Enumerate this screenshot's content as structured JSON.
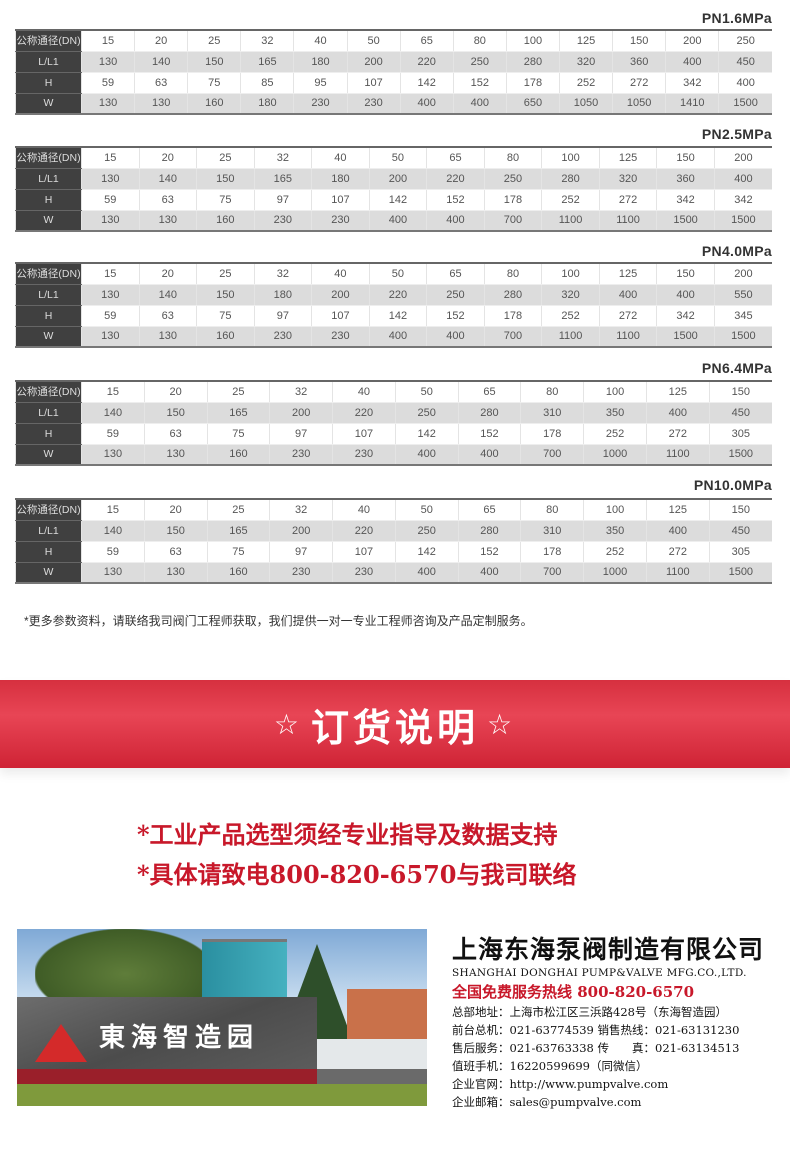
{
  "tables": [
    {
      "pressure": "PN1.6MPa",
      "rows": [
        {
          "label": "公称通径(DN)",
          "values": [
            "15",
            "20",
            "25",
            "32",
            "40",
            "50",
            "65",
            "80",
            "100",
            "125",
            "150",
            "200",
            "250"
          ]
        },
        {
          "label": "L/L1",
          "values": [
            "130",
            "140",
            "150",
            "165",
            "180",
            "200",
            "220",
            "250",
            "280",
            "320",
            "360",
            "400",
            "450"
          ]
        },
        {
          "label": "H",
          "values": [
            "59",
            "63",
            "75",
            "85",
            "95",
            "107",
            "142",
            "152",
            "178",
            "252",
            "272",
            "342",
            "400"
          ]
        },
        {
          "label": "W",
          "values": [
            "130",
            "130",
            "160",
            "180",
            "230",
            "230",
            "400",
            "400",
            "650",
            "1050",
            "1050",
            "1410",
            "1500"
          ]
        }
      ]
    },
    {
      "pressure": "PN2.5MPa",
      "rows": [
        {
          "label": "公称通径(DN)",
          "values": [
            "15",
            "20",
            "25",
            "32",
            "40",
            "50",
            "65",
            "80",
            "100",
            "125",
            "150",
            "200"
          ]
        },
        {
          "label": "L/L1",
          "values": [
            "130",
            "140",
            "150",
            "165",
            "180",
            "200",
            "220",
            "250",
            "280",
            "320",
            "360",
            "400"
          ]
        },
        {
          "label": "H",
          "values": [
            "59",
            "63",
            "75",
            "97",
            "107",
            "142",
            "152",
            "178",
            "252",
            "272",
            "342",
            "342"
          ]
        },
        {
          "label": "W",
          "values": [
            "130",
            "130",
            "160",
            "230",
            "230",
            "400",
            "400",
            "700",
            "1100",
            "1100",
            "1500",
            "1500"
          ]
        }
      ]
    },
    {
      "pressure": "PN4.0MPa",
      "rows": [
        {
          "label": "公称通径(DN)",
          "values": [
            "15",
            "20",
            "25",
            "32",
            "40",
            "50",
            "65",
            "80",
            "100",
            "125",
            "150",
            "200"
          ]
        },
        {
          "label": "L/L1",
          "values": [
            "130",
            "140",
            "150",
            "180",
            "200",
            "220",
            "250",
            "280",
            "320",
            "400",
            "400",
            "550"
          ]
        },
        {
          "label": "H",
          "values": [
            "59",
            "63",
            "75",
            "97",
            "107",
            "142",
            "152",
            "178",
            "252",
            "272",
            "342",
            "345"
          ]
        },
        {
          "label": "W",
          "values": [
            "130",
            "130",
            "160",
            "230",
            "230",
            "400",
            "400",
            "700",
            "1100",
            "1100",
            "1500",
            "1500"
          ]
        }
      ]
    },
    {
      "pressure": "PN6.4MPa",
      "rows": [
        {
          "label": "公称通径(DN)",
          "values": [
            "15",
            "20",
            "25",
            "32",
            "40",
            "50",
            "65",
            "80",
            "100",
            "125",
            "150"
          ]
        },
        {
          "label": "L/L1",
          "values": [
            "140",
            "150",
            "165",
            "200",
            "220",
            "250",
            "280",
            "310",
            "350",
            "400",
            "450"
          ]
        },
        {
          "label": "H",
          "values": [
            "59",
            "63",
            "75",
            "97",
            "107",
            "142",
            "152",
            "178",
            "252",
            "272",
            "305"
          ]
        },
        {
          "label": "W",
          "values": [
            "130",
            "130",
            "160",
            "230",
            "230",
            "400",
            "400",
            "700",
            "1000",
            "1100",
            "1500"
          ]
        }
      ]
    },
    {
      "pressure": "PN10.0MPa",
      "rows": [
        {
          "label": "公称通径(DN)",
          "values": [
            "15",
            "20",
            "25",
            "32",
            "40",
            "50",
            "65",
            "80",
            "100",
            "125",
            "150"
          ]
        },
        {
          "label": "L/L1",
          "values": [
            "140",
            "150",
            "165",
            "200",
            "220",
            "250",
            "280",
            "310",
            "350",
            "400",
            "450"
          ]
        },
        {
          "label": "H",
          "values": [
            "59",
            "63",
            "75",
            "97",
            "107",
            "142",
            "152",
            "178",
            "252",
            "272",
            "305"
          ]
        },
        {
          "label": "W",
          "values": [
            "130",
            "130",
            "160",
            "230",
            "230",
            "400",
            "400",
            "700",
            "1000",
            "1100",
            "1500"
          ]
        }
      ]
    }
  ],
  "note": "*更多参数资料，请联络我司阀门工程师获取，我们提供一对一专业工程师咨询及产品定制服务。",
  "banner": {
    "star": "☆",
    "title": "订货说明",
    "color": "#e23a4b"
  },
  "notices": [
    "*工业产品选型须经专业指导及数据支持",
    "*具体请致电800-820-6570与我司联络"
  ],
  "photo": {
    "sign_text": "東海智造园"
  },
  "company": {
    "name_cn": "上海东海泵阀制造有限公司",
    "name_en": "SHANGHAI DONGHAI PUMP&VALVE MFG.CO.,LTD.",
    "hotline": "全国免费服务热线  800-820-6570",
    "lines": [
      "总部地址：上海市松江区三浜路428号（东海智造园）",
      "前台总机：021-63774539   销售热线：021-63131230",
      "售后服务：021-63763338   传　　真：021-63134513",
      "值班手机：16220599699（同微信）",
      "企业官网：http://www.pumpvalve.com",
      "企业邮箱：sales@pumpvalve.com"
    ]
  }
}
